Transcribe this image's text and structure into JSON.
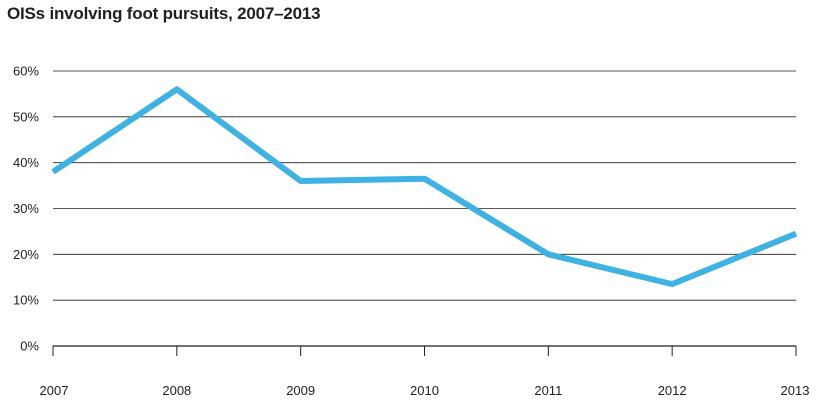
{
  "chart_data": {
    "type": "line",
    "title": "OISs involving foot pursuits, 2007–2013",
    "xlabel": "",
    "ylabel": "",
    "categories": [
      "2007",
      "2008",
      "2009",
      "2010",
      "2011",
      "2012",
      "2013"
    ],
    "series": [
      {
        "values": [
          38,
          56,
          36,
          36.5,
          20,
          13.5,
          24.5
        ],
        "color": "#3fb2e4"
      }
    ],
    "ylim": [
      0,
      60
    ],
    "yticks": [
      0,
      10,
      20,
      30,
      40,
      50,
      60
    ],
    "ytick_labels": [
      "0%",
      "10%",
      "20%",
      "30%",
      "40%",
      "50%",
      "60%"
    ],
    "grid": "horizontal",
    "legend": "none"
  },
  "colors": {
    "line": "#3fb2e4",
    "grid": "#231f20",
    "text": "#231f20"
  }
}
